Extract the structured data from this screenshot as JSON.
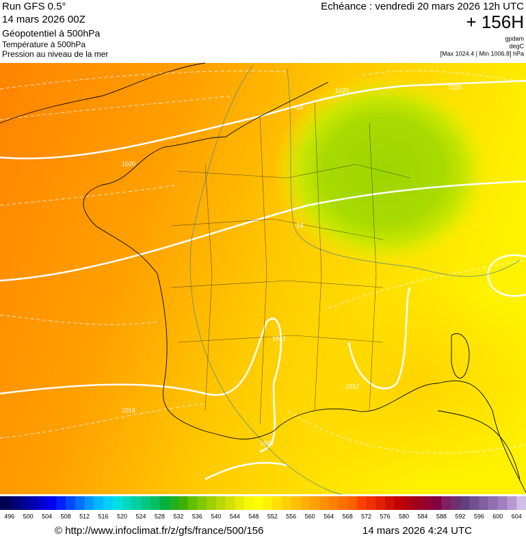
{
  "header": {
    "run": "Run GFS 0.5°",
    "date": "14 mars 2026 00Z",
    "field1": "Géopotentiel à 500hPa",
    "field2": "Température à 500hPa",
    "field3": "Pression au niveau de la mer",
    "valid": "Echéance : vendredi 20 mars 2026 12h UTC",
    "step": "+ 156H",
    "unit1": "gpdam",
    "unit2": "degC",
    "range": "[Max 1024.4 | Min 1006.8] hPa"
  },
  "map": {
    "contour_labels": [
      "1020",
      "1020",
      "1020",
      "1016",
      "1012",
      "1012",
      "1008",
      "-24",
      "-24"
    ]
  },
  "scale": {
    "labels": [
      496,
      500,
      504,
      508,
      512,
      516,
      520,
      524,
      528,
      532,
      536,
      540,
      544,
      548,
      552,
      556,
      560,
      564,
      568,
      572,
      576,
      580,
      584,
      588,
      592,
      596,
      600,
      604
    ],
    "colors": [
      "#000050",
      "#000070",
      "#000090",
      "#0000b0",
      "#0000d0",
      "#0000f0",
      "#0020ff",
      "#0048ff",
      "#0070ff",
      "#0098ff",
      "#00b8ff",
      "#00d0f8",
      "#00e0e0",
      "#00d8c0",
      "#00d0a0",
      "#00c880",
      "#00c060",
      "#00b040",
      "#20b020",
      "#40b000",
      "#60c000",
      "#80c800",
      "#a0d000",
      "#b8d800",
      "#d0e000",
      "#e8ec00",
      "#f8f800",
      "#ffff00",
      "#fff000",
      "#ffe000",
      "#ffd000",
      "#ffc000",
      "#ffb000",
      "#ffa000",
      "#ff9000",
      "#ff8000",
      "#ff7000",
      "#ff6000",
      "#ff4000",
      "#f03000",
      "#e02000",
      "#d01000",
      "#c00000",
      "#b00010",
      "#a00020",
      "#900030",
      "#800040",
      "#802060",
      "#703070",
      "#604080",
      "#705090",
      "#8060a0",
      "#9070b0",
      "#a080c0",
      "#b898d0",
      "#d0c0e8"
    ]
  },
  "footer": {
    "url": "© http://www.infoclimat.fr/z/gfs/france/500/156",
    "time": "14 mars 2026  4:24 UTC"
  }
}
